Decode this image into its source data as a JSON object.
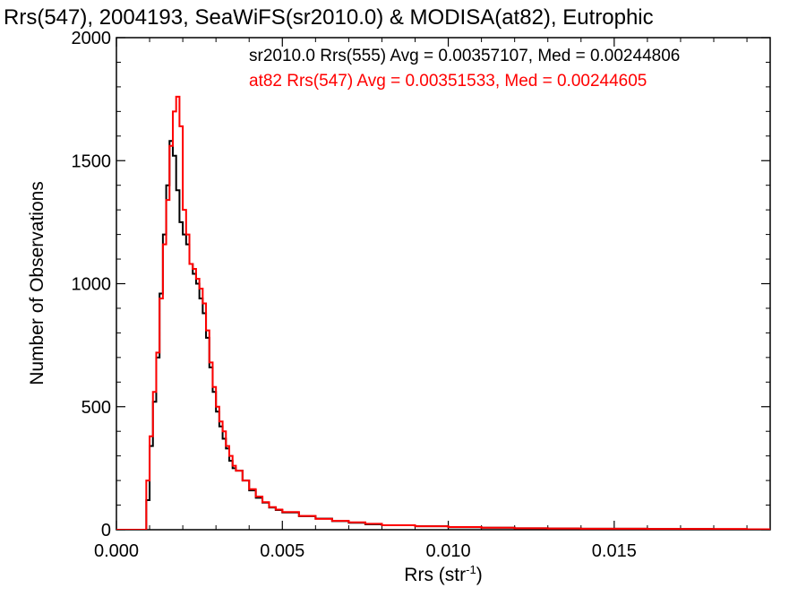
{
  "chart_data": {
    "type": "line",
    "title": "Rrs(547), 2004193, SeaWiFS(sr2010.0) & MODISA(at82), Eutrophic",
    "xlabel_main": "Rrs (str",
    "xlabel_sup": "-1",
    "xlabel_tail": ")",
    "ylabel": "Number of Observations",
    "xlim": [
      0.0,
      0.0197
    ],
    "ylim": [
      0,
      2000
    ],
    "x_ticks": [
      {
        "value": 0.0,
        "label": "0.000"
      },
      {
        "value": 0.005,
        "label": "0.005"
      },
      {
        "value": 0.01,
        "label": "0.010"
      },
      {
        "value": 0.015,
        "label": "0.015"
      }
    ],
    "y_ticks": [
      {
        "value": 0,
        "label": "0"
      },
      {
        "value": 500,
        "label": "500"
      },
      {
        "value": 1000,
        "label": "1000"
      },
      {
        "value": 1500,
        "label": "1500"
      },
      {
        "value": 2000,
        "label": "2000"
      }
    ],
    "legend_placement": "top-right",
    "grid": false,
    "series": [
      {
        "name": "sr2010.0 Rrs(555)",
        "legend": "sr2010.0 Rrs(555) Avg = 0.00357107, Med = 0.00244806",
        "color": "#000000",
        "x": [
          0.0,
          0.0008,
          0.0009,
          0.001,
          0.0011,
          0.0012,
          0.0013,
          0.0014,
          0.0015,
          0.0016,
          0.0017,
          0.0018,
          0.0019,
          0.002,
          0.0021,
          0.0022,
          0.0023,
          0.0024,
          0.0025,
          0.0026,
          0.0027,
          0.0028,
          0.0029,
          0.003,
          0.0031,
          0.0032,
          0.0033,
          0.0034,
          0.0035,
          0.0036,
          0.0038,
          0.004,
          0.0042,
          0.0044,
          0.0046,
          0.0048,
          0.005,
          0.0055,
          0.006,
          0.0065,
          0.007,
          0.0075,
          0.008,
          0.009,
          0.01,
          0.011,
          0.012,
          0.013,
          0.014,
          0.015,
          0.016,
          0.017,
          0.018,
          0.019,
          0.0197
        ],
        "y": [
          0,
          0,
          120,
          340,
          520,
          700,
          960,
          1200,
          1400,
          1580,
          1520,
          1380,
          1250,
          1200,
          1160,
          1080,
          1040,
          1000,
          940,
          880,
          780,
          660,
          560,
          480,
          420,
          370,
          330,
          280,
          250,
          240,
          200,
          160,
          130,
          110,
          90,
          80,
          70,
          55,
          45,
          35,
          28,
          22,
          18,
          14,
          10,
          8,
          6,
          5,
          4,
          4,
          3,
          3,
          2,
          2,
          2
        ]
      },
      {
        "name": "at82 Rrs(547)",
        "legend": "at82 Rrs(547) Avg = 0.00351533, Med = 0.00244605",
        "color": "#ff0000",
        "x": [
          0.0,
          0.0008,
          0.0009,
          0.001,
          0.0011,
          0.0012,
          0.0013,
          0.0014,
          0.0015,
          0.0016,
          0.0017,
          0.0018,
          0.0019,
          0.002,
          0.0021,
          0.0022,
          0.0023,
          0.0024,
          0.0025,
          0.0026,
          0.0027,
          0.0028,
          0.0029,
          0.003,
          0.0031,
          0.0032,
          0.0033,
          0.0034,
          0.0035,
          0.0036,
          0.0038,
          0.004,
          0.0042,
          0.0044,
          0.0046,
          0.0048,
          0.005,
          0.0055,
          0.006,
          0.0065,
          0.007,
          0.0075,
          0.008,
          0.009,
          0.01,
          0.011,
          0.012,
          0.013,
          0.014,
          0.015,
          0.016,
          0.017,
          0.018,
          0.019,
          0.0197
        ],
        "y": [
          0,
          0,
          200,
          380,
          560,
          720,
          940,
          1160,
          1340,
          1560,
          1700,
          1760,
          1640,
          1300,
          1200,
          1080,
          1060,
          1020,
          980,
          920,
          810,
          680,
          580,
          500,
          440,
          400,
          340,
          300,
          260,
          240,
          200,
          165,
          135,
          112,
          92,
          82,
          72,
          56,
          44,
          36,
          30,
          24,
          18,
          14,
          11,
          8,
          6,
          5,
          4,
          4,
          3,
          3,
          3,
          2,
          2
        ]
      }
    ]
  }
}
